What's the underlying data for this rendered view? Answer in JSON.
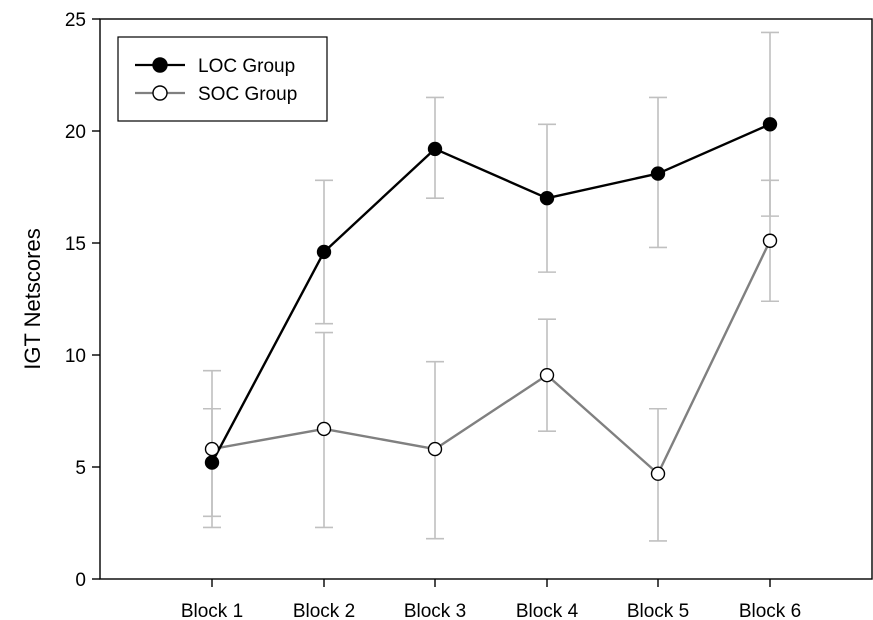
{
  "chart_data": {
    "type": "line",
    "title": "",
    "xlabel": "",
    "ylabel": "IGT Netscores",
    "categories": [
      "Block 1",
      "Block 2",
      "Block 3",
      "Block 4",
      "Block 5",
      "Block 6"
    ],
    "ylim": [
      0,
      25
    ],
    "yticks": [
      0,
      5,
      10,
      15,
      20,
      25
    ],
    "grid": false,
    "legend": "top-left",
    "series": [
      {
        "name": "LOC Group",
        "values": [
          5.2,
          14.6,
          19.2,
          17.0,
          18.1,
          20.3
        ],
        "error_low": [
          2.8,
          11.4,
          17.0,
          13.7,
          14.8,
          16.2
        ],
        "error_high": [
          7.6,
          17.8,
          21.5,
          20.3,
          21.5,
          24.4
        ],
        "marker": "filled-circle",
        "line_color": "#000000",
        "marker_fill": "#000000"
      },
      {
        "name": "SOC Group",
        "values": [
          5.8,
          6.7,
          5.8,
          9.1,
          4.7,
          15.1
        ],
        "error_low": [
          2.3,
          2.3,
          1.8,
          6.6,
          1.7,
          12.4
        ],
        "error_high": [
          9.3,
          11.0,
          9.7,
          11.6,
          7.6,
          17.8
        ],
        "marker": "open-circle",
        "line_color": "#808080",
        "marker_fill": "#ffffff"
      }
    ],
    "colors": {
      "error_bar": "#c0c0c0",
      "axis": "#000000"
    }
  }
}
